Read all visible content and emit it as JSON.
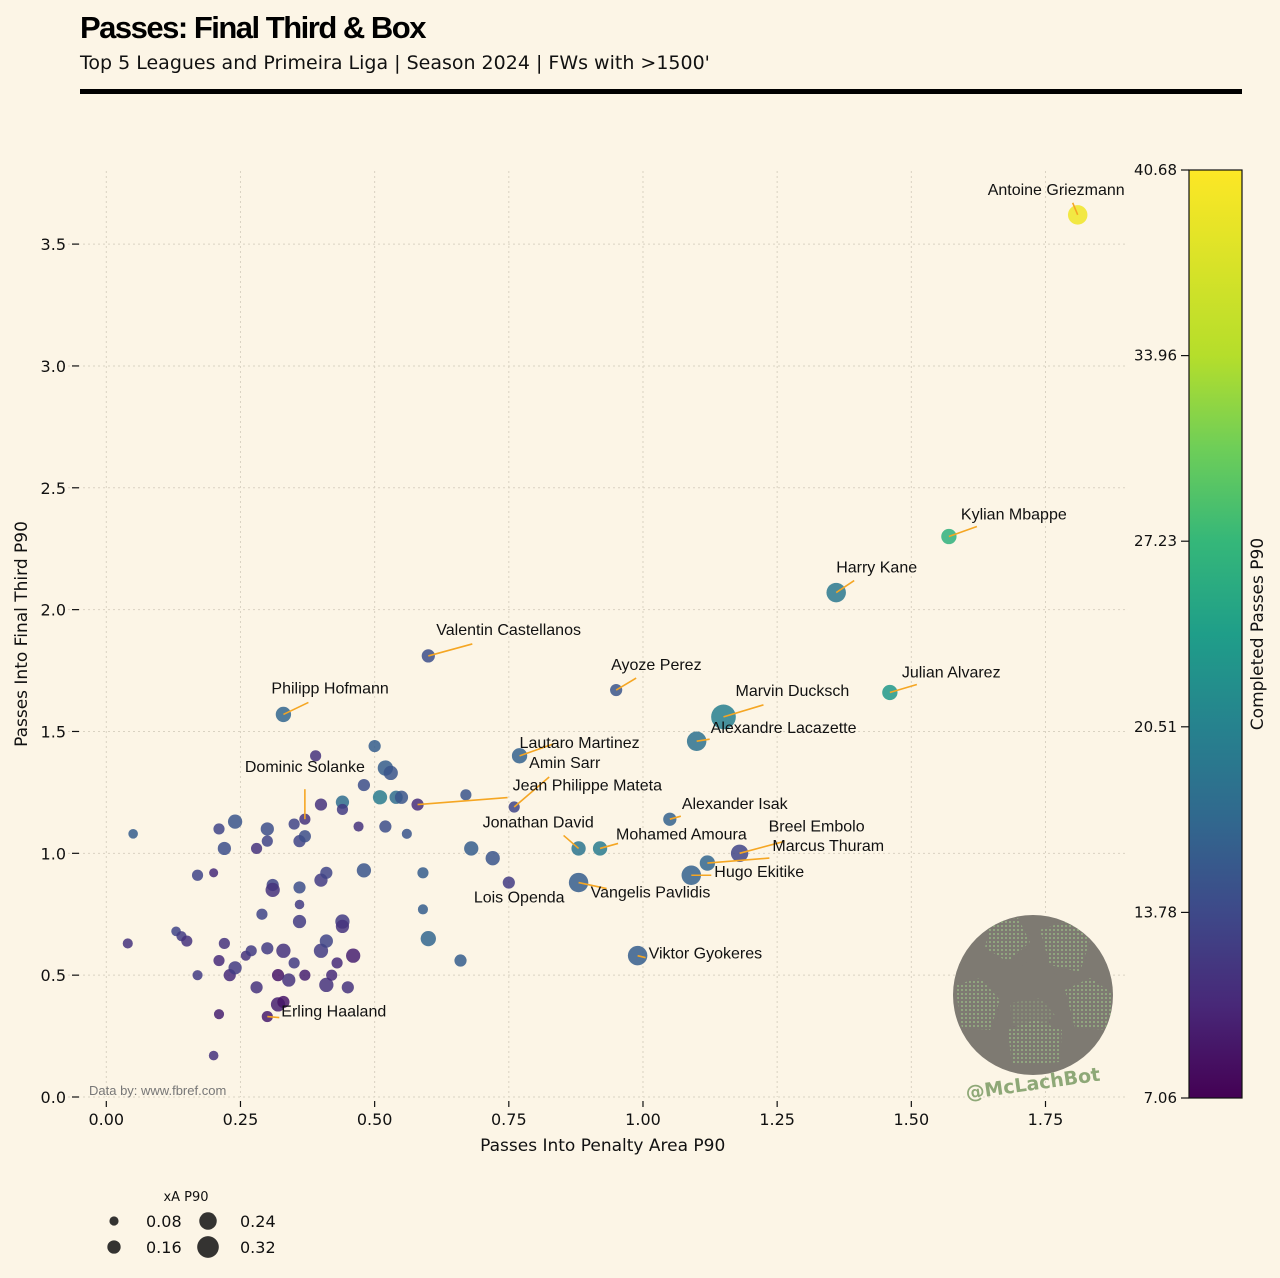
{
  "header": {
    "title": "Passes: Final Third & Box",
    "subtitle": "Top 5 Leagues and Primeira Liga | Season 2024 | FWs with >1500'"
  },
  "credit": "Data by: www.fbref.com",
  "watermark": "@McLachBot",
  "colors": {
    "background": "#fcf5e6",
    "annotation_line": "#f5a623",
    "grid": "#d9d2c2"
  },
  "colorbar": {
    "label": "Completed Passes P90",
    "colormap": "viridis",
    "min": 7.06,
    "max": 40.68,
    "ticks": [
      "7.06",
      "13.78",
      "20.51",
      "27.23",
      "33.96",
      "40.68"
    ]
  },
  "size_legend": {
    "title": "xA P90",
    "entries": [
      {
        "label": "0.08",
        "value": 0.08
      },
      {
        "label": "0.24",
        "value": 0.24
      },
      {
        "label": "0.16",
        "value": 0.16
      },
      {
        "label": "0.32",
        "value": 0.32
      }
    ]
  },
  "chart_data": {
    "type": "scatter",
    "xlabel": "Passes Into Penalty Area P90",
    "ylabel": "Passes Into Final Third P90",
    "xlim": [
      -0.09,
      1.9
    ],
    "ylim": [
      0,
      3.8
    ],
    "xticks": [
      "0.00",
      "0.25",
      "0.50",
      "0.75",
      "1.00",
      "1.25",
      "1.50",
      "1.75"
    ],
    "xtick_values": [
      0,
      0.25,
      0.5,
      0.75,
      1.0,
      1.25,
      1.5,
      1.75
    ],
    "yticks": [
      "0.0",
      "0.5",
      "1.0",
      "1.5",
      "2.0",
      "2.5",
      "3.0",
      "3.5"
    ],
    "ytick_values": [
      0,
      0.5,
      1.0,
      1.5,
      2.0,
      2.5,
      3.0,
      3.5
    ],
    "grid": true,
    "named_points": [
      {
        "name": "Antoine Griezmann",
        "x": 1.81,
        "y": 3.62,
        "c": 40.0,
        "s": 0.24
      },
      {
        "name": "Kylian Mbappe",
        "x": 1.57,
        "y": 2.3,
        "c": 28.5,
        "s": 0.16
      },
      {
        "name": "Harry Kane",
        "x": 1.36,
        "y": 2.07,
        "c": 20.5,
        "s": 0.24
      },
      {
        "name": "Julian Alvarez",
        "x": 1.46,
        "y": 1.66,
        "c": 25.0,
        "s": 0.16
      },
      {
        "name": "Valentin Castellanos",
        "x": 0.6,
        "y": 1.81,
        "c": 15.0,
        "s": 0.12
      },
      {
        "name": "Ayoze Perez",
        "x": 0.95,
        "y": 1.67,
        "c": 16.0,
        "s": 0.1
      },
      {
        "name": "Marvin Ducksch",
        "x": 1.15,
        "y": 1.56,
        "c": 21.5,
        "s": 0.34
      },
      {
        "name": "Philipp Hofmann",
        "x": 0.33,
        "y": 1.57,
        "c": 18.0,
        "s": 0.16
      },
      {
        "name": "Alexandre Lacazette",
        "x": 1.1,
        "y": 1.46,
        "c": 19.5,
        "s": 0.24
      },
      {
        "name": "Lautaro Martinez",
        "x": 0.77,
        "y": 1.4,
        "c": 17.5,
        "s": 0.16
      },
      {
        "name": "Dominic Solanke",
        "x": 0.37,
        "y": 1.14,
        "c": 12.0,
        "s": 0.08
      },
      {
        "name": "Amin Sarr",
        "x": 0.76,
        "y": 1.19,
        "c": 14.0,
        "s": 0.08
      },
      {
        "name": "Jean Philippe Mateta",
        "x": 0.58,
        "y": 1.2,
        "c": 11.5,
        "s": 0.1
      },
      {
        "name": "Alexander Isak",
        "x": 1.05,
        "y": 1.14,
        "c": 17.5,
        "s": 0.12
      },
      {
        "name": "Jonathan David",
        "x": 0.88,
        "y": 1.02,
        "c": 20.0,
        "s": 0.14
      },
      {
        "name": "Mohamed Amoura",
        "x": 0.92,
        "y": 1.02,
        "c": 21.0,
        "s": 0.14
      },
      {
        "name": "Breel Embolo",
        "x": 1.18,
        "y": 1.0,
        "c": 14.0,
        "s": 0.2
      },
      {
        "name": "Marcus Thuram",
        "x": 1.12,
        "y": 0.96,
        "c": 18.0,
        "s": 0.16
      },
      {
        "name": "Hugo Ekitike",
        "x": 1.09,
        "y": 0.91,
        "c": 17.5,
        "s": 0.24
      },
      {
        "name": "Lois Openda",
        "x": 0.75,
        "y": 0.88,
        "c": 13.0,
        "s": 0.1
      },
      {
        "name": "Vangelis Pavlidis",
        "x": 0.88,
        "y": 0.88,
        "c": 17.0,
        "s": 0.24
      },
      {
        "name": "Viktor Gyokeres",
        "x": 0.99,
        "y": 0.58,
        "c": 17.0,
        "s": 0.24
      },
      {
        "name": "Erling Haaland",
        "x": 0.3,
        "y": 0.33,
        "c": 9.5,
        "s": 0.08
      }
    ],
    "other_points": [
      {
        "x": 0.05,
        "y": 1.08,
        "c": 17,
        "s": 0.05
      },
      {
        "x": 0.04,
        "y": 0.63,
        "c": 12,
        "s": 0.06
      },
      {
        "x": 0.13,
        "y": 0.68,
        "c": 14,
        "s": 0.05
      },
      {
        "x": 0.14,
        "y": 0.66,
        "c": 13,
        "s": 0.06
      },
      {
        "x": 0.15,
        "y": 0.64,
        "c": 12,
        "s": 0.08
      },
      {
        "x": 0.17,
        "y": 0.5,
        "c": 13,
        "s": 0.06
      },
      {
        "x": 0.17,
        "y": 0.91,
        "c": 14,
        "s": 0.08
      },
      {
        "x": 0.2,
        "y": 0.92,
        "c": 11,
        "s": 0.04
      },
      {
        "x": 0.21,
        "y": 0.56,
        "c": 11,
        "s": 0.08
      },
      {
        "x": 0.21,
        "y": 0.34,
        "c": 10,
        "s": 0.06
      },
      {
        "x": 0.2,
        "y": 0.17,
        "c": 12,
        "s": 0.05
      },
      {
        "x": 0.21,
        "y": 1.1,
        "c": 14,
        "s": 0.08
      },
      {
        "x": 0.22,
        "y": 1.02,
        "c": 15,
        "s": 0.12
      },
      {
        "x": 0.22,
        "y": 0.63,
        "c": 12,
        "s": 0.08
      },
      {
        "x": 0.23,
        "y": 0.5,
        "c": 11,
        "s": 0.1
      },
      {
        "x": 0.24,
        "y": 0.53,
        "c": 13,
        "s": 0.12
      },
      {
        "x": 0.24,
        "y": 1.13,
        "c": 16,
        "s": 0.14
      },
      {
        "x": 0.26,
        "y": 0.58,
        "c": 12,
        "s": 0.06
      },
      {
        "x": 0.27,
        "y": 0.6,
        "c": 13,
        "s": 0.08
      },
      {
        "x": 0.28,
        "y": 0.45,
        "c": 12,
        "s": 0.1
      },
      {
        "x": 0.28,
        "y": 1.02,
        "c": 12,
        "s": 0.08
      },
      {
        "x": 0.29,
        "y": 0.75,
        "c": 14,
        "s": 0.08
      },
      {
        "x": 0.3,
        "y": 1.1,
        "c": 15,
        "s": 0.12
      },
      {
        "x": 0.3,
        "y": 1.05,
        "c": 14,
        "s": 0.08
      },
      {
        "x": 0.3,
        "y": 0.61,
        "c": 13,
        "s": 0.1
      },
      {
        "x": 0.31,
        "y": 0.87,
        "c": 14,
        "s": 0.1
      },
      {
        "x": 0.31,
        "y": 0.85,
        "c": 12,
        "s": 0.14
      },
      {
        "x": 0.32,
        "y": 0.5,
        "c": 9,
        "s": 0.1
      },
      {
        "x": 0.32,
        "y": 0.38,
        "c": 10,
        "s": 0.14
      },
      {
        "x": 0.33,
        "y": 0.39,
        "c": 9,
        "s": 0.1
      },
      {
        "x": 0.33,
        "y": 0.6,
        "c": 12,
        "s": 0.14
      },
      {
        "x": 0.34,
        "y": 0.48,
        "c": 12,
        "s": 0.12
      },
      {
        "x": 0.35,
        "y": 0.55,
        "c": 13,
        "s": 0.08
      },
      {
        "x": 0.35,
        "y": 1.12,
        "c": 14,
        "s": 0.08
      },
      {
        "x": 0.36,
        "y": 1.05,
        "c": 14,
        "s": 0.1
      },
      {
        "x": 0.36,
        "y": 0.86,
        "c": 15,
        "s": 0.1
      },
      {
        "x": 0.36,
        "y": 0.79,
        "c": 13,
        "s": 0.05
      },
      {
        "x": 0.36,
        "y": 0.72,
        "c": 13,
        "s": 0.12
      },
      {
        "x": 0.37,
        "y": 1.07,
        "c": 15,
        "s": 0.1
      },
      {
        "x": 0.37,
        "y": 0.5,
        "c": 10,
        "s": 0.08
      },
      {
        "x": 0.39,
        "y": 1.4,
        "c": 12,
        "s": 0.08
      },
      {
        "x": 0.4,
        "y": 1.2,
        "c": 12,
        "s": 0.1
      },
      {
        "x": 0.4,
        "y": 0.89,
        "c": 13,
        "s": 0.12
      },
      {
        "x": 0.4,
        "y": 0.6,
        "c": 13,
        "s": 0.14
      },
      {
        "x": 0.41,
        "y": 0.64,
        "c": 14,
        "s": 0.12
      },
      {
        "x": 0.41,
        "y": 0.46,
        "c": 12,
        "s": 0.14
      },
      {
        "x": 0.41,
        "y": 0.92,
        "c": 14,
        "s": 0.1
      },
      {
        "x": 0.42,
        "y": 0.5,
        "c": 11,
        "s": 0.08
      },
      {
        "x": 0.43,
        "y": 0.55,
        "c": 11,
        "s": 0.08
      },
      {
        "x": 0.44,
        "y": 1.21,
        "c": 19,
        "s": 0.12
      },
      {
        "x": 0.44,
        "y": 1.18,
        "c": 13,
        "s": 0.08
      },
      {
        "x": 0.44,
        "y": 0.72,
        "c": 13,
        "s": 0.14
      },
      {
        "x": 0.44,
        "y": 0.7,
        "c": 12,
        "s": 0.12
      },
      {
        "x": 0.45,
        "y": 0.45,
        "c": 12,
        "s": 0.1
      },
      {
        "x": 0.46,
        "y": 0.58,
        "c": 10,
        "s": 0.14
      },
      {
        "x": 0.47,
        "y": 1.11,
        "c": 12,
        "s": 0.06
      },
      {
        "x": 0.48,
        "y": 1.28,
        "c": 15,
        "s": 0.1
      },
      {
        "x": 0.48,
        "y": 0.93,
        "c": 16,
        "s": 0.14
      },
      {
        "x": 0.5,
        "y": 1.44,
        "c": 17,
        "s": 0.1
      },
      {
        "x": 0.51,
        "y": 1.23,
        "c": 21,
        "s": 0.14
      },
      {
        "x": 0.52,
        "y": 1.35,
        "c": 17,
        "s": 0.16
      },
      {
        "x": 0.52,
        "y": 1.11,
        "c": 15,
        "s": 0.1
      },
      {
        "x": 0.53,
        "y": 1.33,
        "c": 16,
        "s": 0.14
      },
      {
        "x": 0.54,
        "y": 1.23,
        "c": 19,
        "s": 0.12
      },
      {
        "x": 0.55,
        "y": 1.23,
        "c": 16,
        "s": 0.12
      },
      {
        "x": 0.56,
        "y": 1.08,
        "c": 16,
        "s": 0.06
      },
      {
        "x": 0.59,
        "y": 0.92,
        "c": 17,
        "s": 0.08
      },
      {
        "x": 0.59,
        "y": 0.77,
        "c": 17,
        "s": 0.06
      },
      {
        "x": 0.6,
        "y": 0.65,
        "c": 18,
        "s": 0.16
      },
      {
        "x": 0.66,
        "y": 0.56,
        "c": 17,
        "s": 0.1
      },
      {
        "x": 0.67,
        "y": 1.24,
        "c": 16,
        "s": 0.08
      },
      {
        "x": 0.68,
        "y": 1.02,
        "c": 17,
        "s": 0.14
      },
      {
        "x": 0.72,
        "y": 0.98,
        "c": 16,
        "s": 0.14
      }
    ]
  }
}
